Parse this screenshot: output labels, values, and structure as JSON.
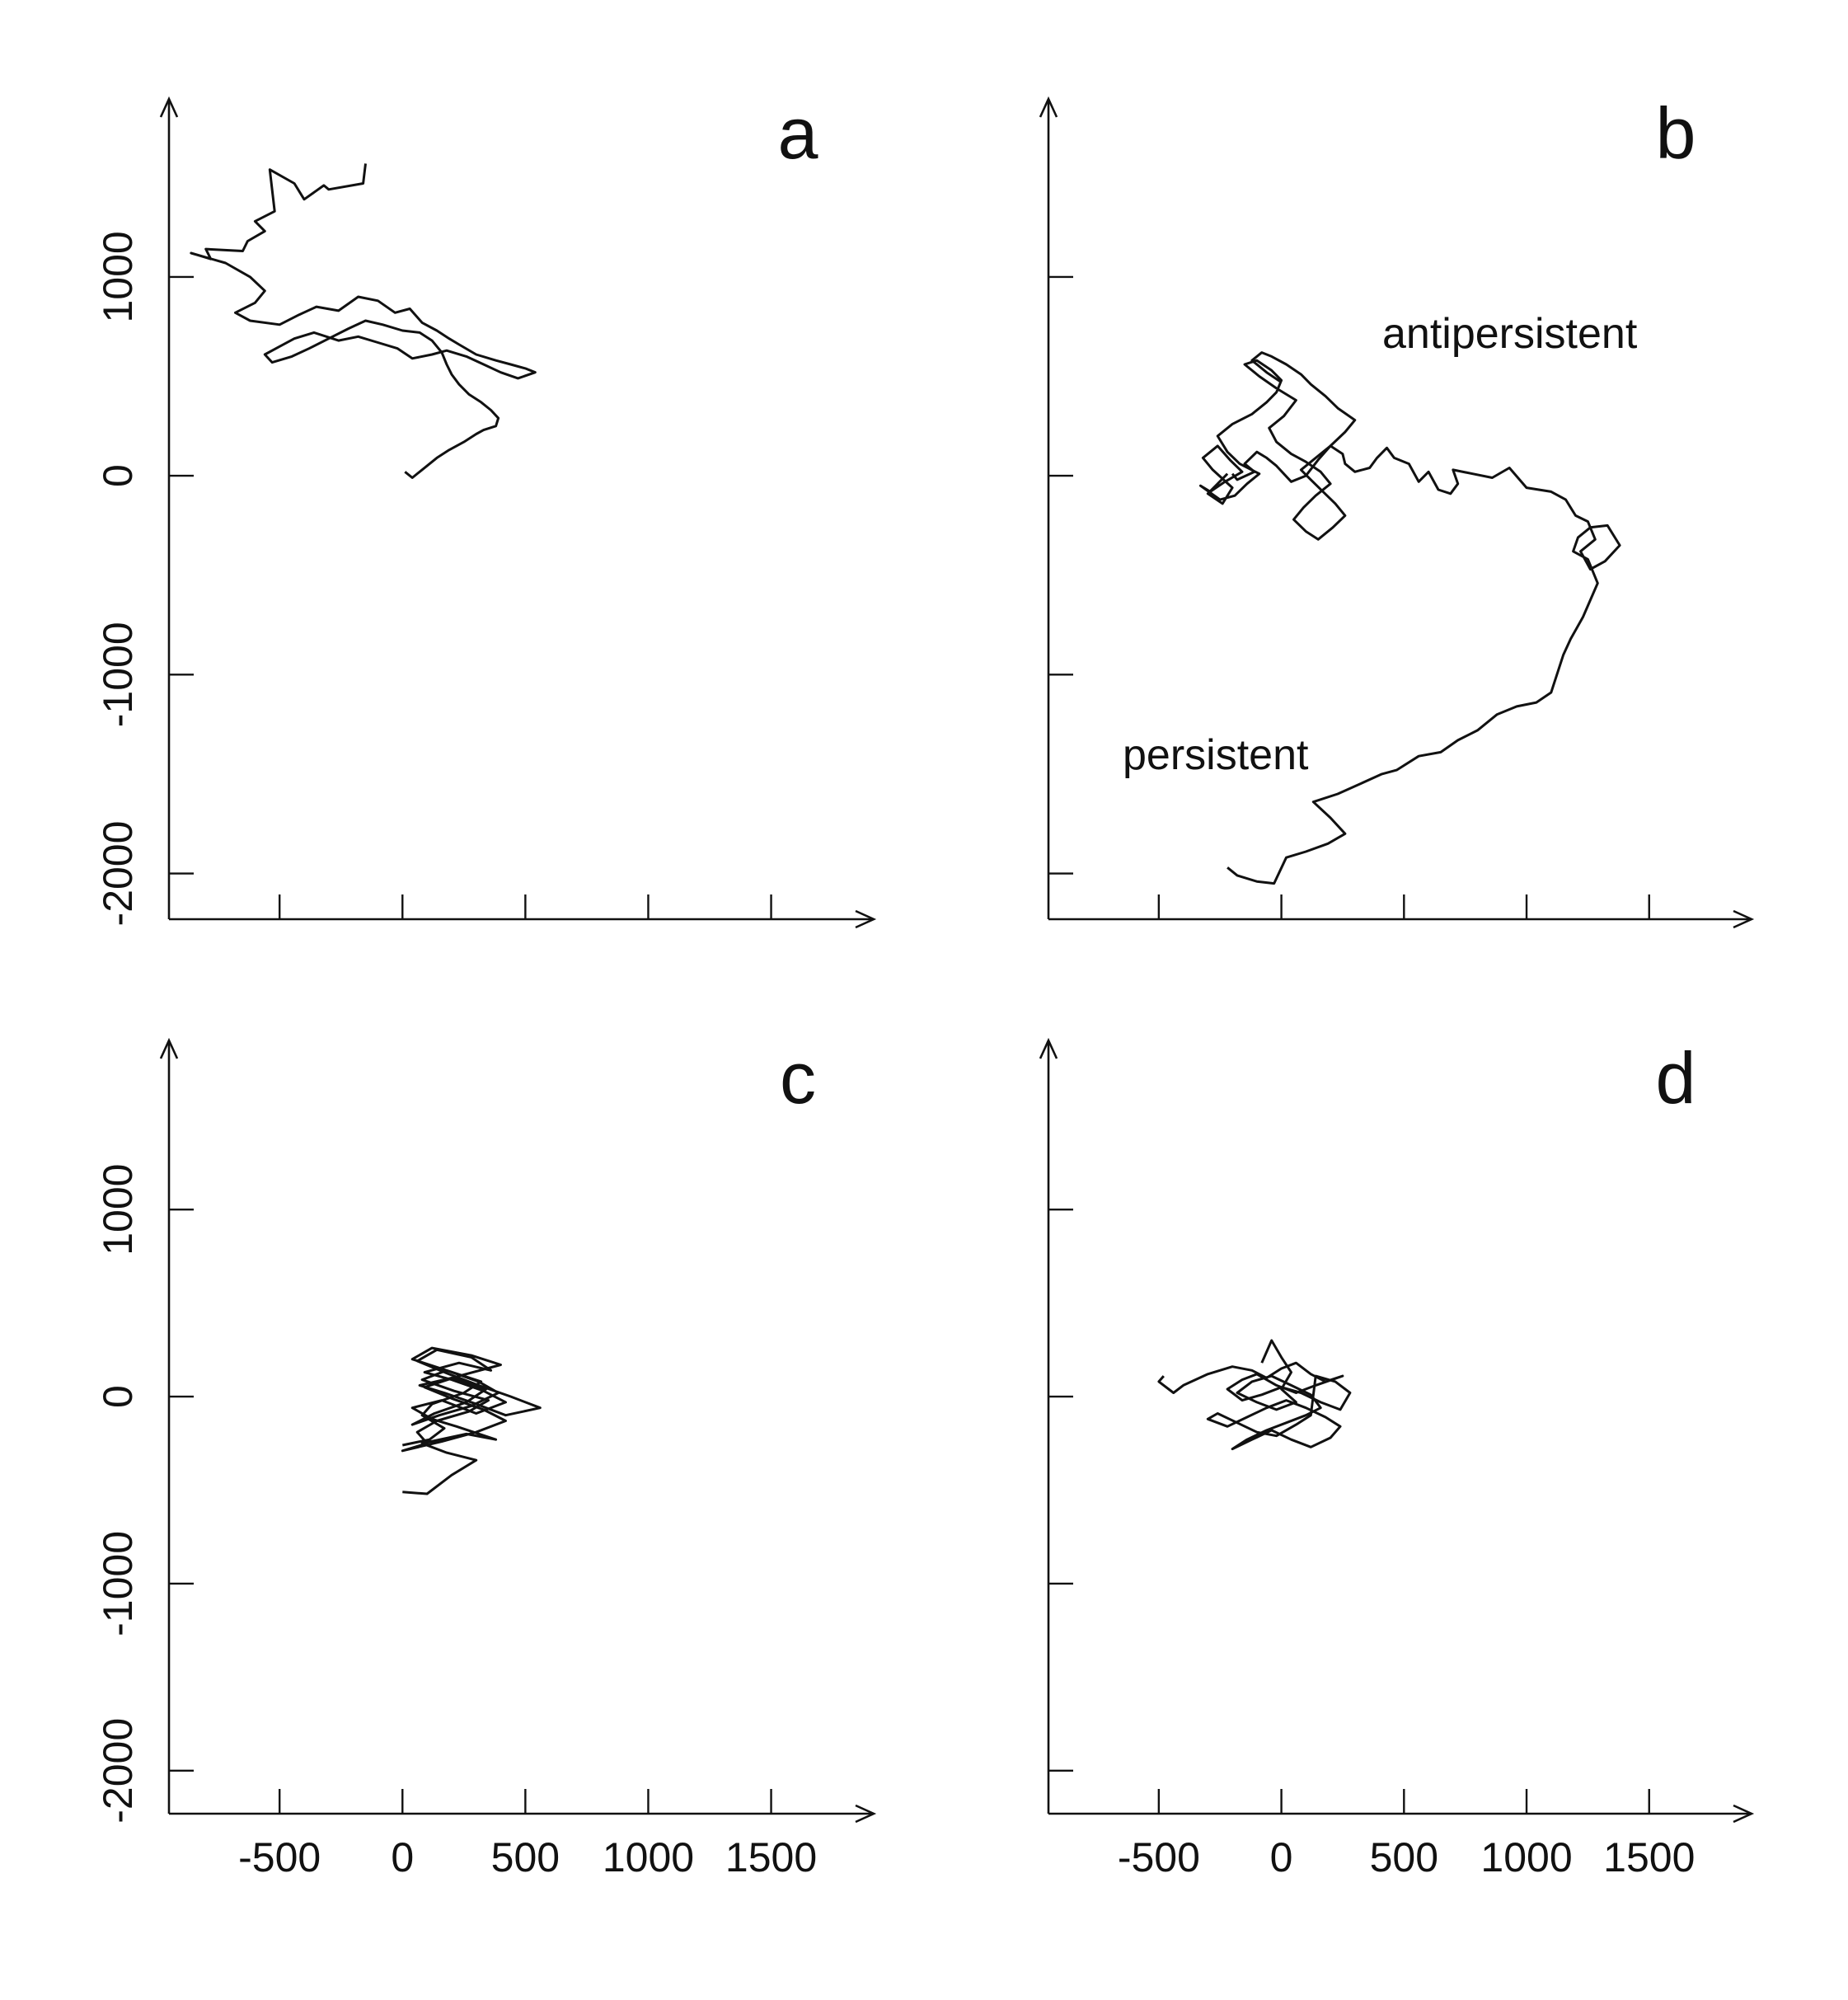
{
  "figure": {
    "x_axis_ticks": [
      "-500",
      "0",
      "500",
      "1000",
      "1500"
    ],
    "y_axis_ticks": [
      "1000",
      "0",
      "-1000",
      "-2000"
    ],
    "colors": {
      "trace": "#111111",
      "axis": "#111111",
      "background": "#ffffff"
    }
  },
  "chart_data": [
    {
      "type": "line",
      "panel": "a",
      "title": "",
      "xlabel": "",
      "ylabel": "",
      "x_ticks": [
        -500,
        0,
        500,
        1000,
        1500
      ],
      "y_ticks": [
        1000,
        0,
        -1000,
        -2000
      ],
      "xlim": [
        -950,
        1800
      ],
      "ylim": [
        -2230,
        1750
      ],
      "annotations": [],
      "series": [
        {
          "x": [
            -150,
            -160,
            -300,
            -320,
            -400,
            -440,
            -540,
            -520,
            -600,
            -560,
            -630,
            -650,
            -800,
            -780,
            -860,
            -720,
            -620,
            -560,
            -600,
            -680,
            -620,
            -500,
            -420,
            -350,
            -260,
            -180,
            -100,
            -30,
            30,
            80,
            140,
            190,
            230,
            300,
            380,
            440,
            500,
            540,
            470,
            400,
            330,
            260,
            180,
            120,
            40,
            -20,
            -100,
            -180,
            -260,
            -360,
            -440,
            -500,
            -560,
            -530,
            -450,
            -380,
            -300,
            -220,
            -150,
            -80,
            0,
            70,
            120,
            160,
            180,
            200,
            230,
            270,
            320,
            360,
            390,
            380,
            330,
            300,
            250,
            190,
            140,
            100,
            70,
            40,
            10
          ],
          "y": [
            1570,
            1470,
            1440,
            1460,
            1390,
            1470,
            1540,
            1330,
            1280,
            1230,
            1180,
            1130,
            1140,
            1090,
            1120,
            1070,
            1000,
            930,
            870,
            820,
            780,
            760,
            810,
            850,
            830,
            900,
            880,
            820,
            840,
            770,
            730,
            690,
            660,
            610,
            580,
            560,
            540,
            520,
            490,
            520,
            560,
            600,
            630,
            610,
            590,
            640,
            670,
            700,
            680,
            720,
            690,
            650,
            610,
            570,
            600,
            640,
            690,
            740,
            780,
            760,
            730,
            720,
            680,
            620,
            560,
            510,
            460,
            410,
            370,
            330,
            290,
            250,
            230,
            210,
            170,
            130,
            90,
            50,
            20,
            -10,
            20
          ]
        }
      ]
    },
    {
      "type": "line",
      "panel": "b",
      "title": "",
      "xlabel": "",
      "ylabel": "",
      "x_ticks": [
        -500,
        0,
        500,
        1000,
        1500
      ],
      "y_ticks": [
        1000,
        0,
        -1000,
        -2000
      ],
      "xlim": [
        -950,
        1800
      ],
      "ylim": [
        -2230,
        1750
      ],
      "annotations": [
        "antipersistent",
        "persistent"
      ],
      "series": [
        {
          "x": [
            -220,
            -180,
            -100,
            -30,
            20,
            100,
            190,
            260,
            200,
            130,
            230,
            320,
            410,
            470,
            560,
            650,
            720,
            800,
            880,
            960,
            1040,
            1100,
            1150,
            1180,
            1230,
            1290,
            1250,
            1190,
            1210,
            1260,
            1330,
            1380,
            1320,
            1260,
            1220,
            1280,
            1250,
            1200,
            1160,
            1100,
            1000,
            930,
            860,
            780,
            700,
            720,
            690,
            640,
            600,
            560,
            520,
            460,
            430,
            390,
            360,
            300,
            260,
            250,
            200,
            150,
            100,
            40,
            -20,
            -60,
            -100,
            -150,
            -110,
            -180,
            -200
          ],
          "y": [
            -1970,
            -2010,
            -2040,
            -2050,
            -1920,
            -1890,
            -1850,
            -1800,
            -1720,
            -1640,
            -1600,
            -1550,
            -1500,
            -1480,
            -1410,
            -1390,
            -1330,
            -1280,
            -1200,
            -1160,
            -1140,
            -1090,
            -900,
            -820,
            -710,
            -540,
            -420,
            -380,
            -310,
            -260,
            -250,
            -350,
            -430,
            -470,
            -380,
            -320,
            -230,
            -200,
            -120,
            -80,
            -60,
            40,
            -10,
            10,
            30,
            -40,
            -90,
            -70,
            20,
            -30,
            60,
            90,
            140,
            90,
            40,
            20,
            60,
            110,
            150,
            80,
            0,
            -30,
            50,
            90,
            120,
            60,
            20,
            -20,
            10
          ]
        },
        {
          "x": [
            -220,
            -260,
            -300,
            -240,
            -200,
            -280,
            -320,
            -260,
            -210,
            -160,
            -230,
            -290,
            -330,
            -250,
            -190,
            -140,
            -90,
            -170,
            -220,
            -260,
            -200,
            -120,
            -60,
            -20,
            0,
            -40,
            -100,
            -150,
            -90,
            -20,
            60,
            10,
            -50,
            -20,
            40,
            100,
            160,
            200,
            140,
            90,
            50,
            100,
            150,
            210,
            260,
            220,
            170,
            120,
            80,
            140,
            200,
            260,
            300,
            230,
            180,
            120,
            80,
            20,
            -40,
            -80,
            -120,
            -60,
            0
          ],
          "y": [
            10,
            -40,
            -90,
            -140,
            -60,
            30,
            90,
            150,
            80,
            20,
            -30,
            -80,
            -50,
            -120,
            -100,
            -40,
            10,
            60,
            120,
            200,
            260,
            310,
            370,
            420,
            480,
            530,
            580,
            560,
            500,
            440,
            380,
            300,
            240,
            170,
            110,
            70,
            20,
            -40,
            -100,
            -160,
            -220,
            -280,
            -320,
            -260,
            -200,
            -140,
            -80,
            -20,
            30,
            90,
            150,
            220,
            280,
            340,
            400,
            460,
            510,
            560,
            600,
            620,
            580,
            520,
            470
          ]
        }
      ]
    },
    {
      "type": "line",
      "panel": "c",
      "title": "",
      "xlabel": "",
      "ylabel": "",
      "x_ticks": [
        -500,
        0,
        500,
        1000,
        1500
      ],
      "y_ticks": [
        1000,
        0,
        -1000,
        -2000
      ],
      "xlim": [
        -950,
        1800
      ],
      "ylim": [
        -2230,
        1750
      ],
      "annotations": [],
      "series": [
        {
          "x": [
            0,
            100,
            200,
            300,
            180,
            80,
            260,
            380,
            220,
            120,
            40,
            160,
            300,
            420,
            330,
            200,
            90,
            230,
            360,
            280,
            140,
            60,
            190,
            310,
            440,
            560,
            420,
            300,
            170,
            70,
            200,
            340,
            260,
            130,
            40,
            150,
            280,
            390,
            310,
            180,
            80,
            210,
            350,
            270,
            140,
            60,
            100,
            0,
            160,
            300,
            420,
            330,
            200,
            90,
            230,
            400,
            280,
            120,
            40,
            180,
            320,
            250,
            120,
            80,
            170,
            110,
            0
          ],
          "y": [
            -510,
            -520,
            -420,
            -340,
            -300,
            -250,
            -200,
            -230,
            -160,
            -120,
            -60,
            -20,
            -90,
            -30,
            30,
            90,
            130,
            180,
            140,
            210,
            250,
            190,
            120,
            60,
            0,
            -60,
            -100,
            -40,
            20,
            60,
            100,
            40,
            -30,
            -90,
            -150,
            -100,
            -50,
            20,
            80,
            140,
            90,
            30,
            -20,
            -80,
            -130,
            -190,
            -250,
            -290,
            -240,
            -190,
            -130,
            -70,
            -10,
            50,
            110,
            170,
            220,
            260,
            200,
            140,
            80,
            20,
            -40,
            -100,
            -170,
            -230,
            -260
          ]
        }
      ]
    },
    {
      "type": "line",
      "panel": "d",
      "title": "",
      "xlabel": "",
      "ylabel": "",
      "x_ticks": [
        -500,
        0,
        500,
        1000,
        1500
      ],
      "y_ticks": [
        1000,
        0,
        -1000,
        -2000
      ],
      "xlim": [
        -950,
        1800
      ],
      "ylim": [
        -2230,
        1750
      ],
      "annotations": [],
      "series": [
        {
          "x": [
            -480,
            -500,
            -440,
            -400,
            -300,
            -200,
            -120,
            -60,
            0,
            60,
            120,
            180,
            250,
            140,
            60,
            -20,
            -100,
            -160,
            -220,
            -160,
            -80,
            0,
            80,
            160,
            240,
            280,
            220,
            140,
            120,
            60,
            -20,
            -100,
            -180,
            -260,
            -300,
            -220,
            -140,
            -60,
            20,
            100,
            180,
            240,
            200,
            120,
            40,
            -40,
            -120,
            -200,
            -140,
            -60,
            20,
            100,
            160,
            120,
            40,
            -40,
            -120,
            -180,
            -100,
            -20,
            60,
            0,
            40,
            0,
            -40,
            -80
          ],
          "y": [
            110,
            80,
            20,
            60,
            120,
            160,
            140,
            100,
            150,
            180,
            120,
            80,
            110,
            60,
            20,
            60,
            120,
            90,
            40,
            -20,
            10,
            50,
            20,
            -30,
            -70,
            20,
            80,
            110,
            -100,
            -150,
            -210,
            -190,
            -140,
            -90,
            -120,
            -160,
            -110,
            -60,
            -20,
            -60,
            -110,
            -160,
            -220,
            -270,
            -230,
            -180,
            -230,
            -280,
            -230,
            -180,
            -140,
            -100,
            -60,
            10,
            60,
            110,
            80,
            20,
            -30,
            -70,
            -30,
            40,
            130,
            210,
            300,
            180
          ]
        }
      ]
    }
  ]
}
